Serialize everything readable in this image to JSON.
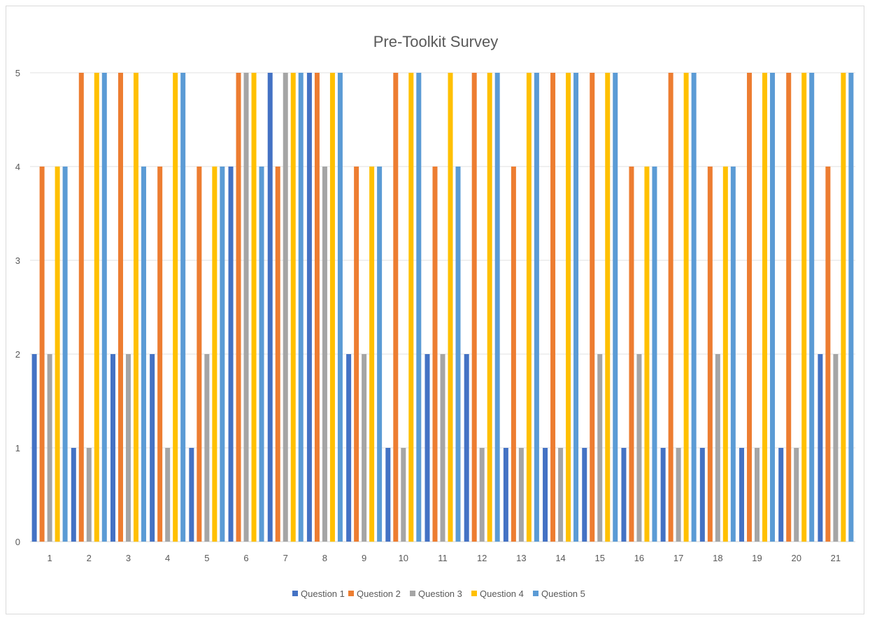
{
  "chart_data": {
    "type": "bar",
    "title": "Pre-Toolkit Survey",
    "xlabel": "",
    "ylabel": "",
    "ylim": [
      0,
      5
    ],
    "yticks": [
      "0",
      "1",
      "2",
      "3",
      "4",
      "5"
    ],
    "grid": true,
    "legend_position": "bottom",
    "categories": [
      "1",
      "2",
      "3",
      "4",
      "5",
      "6",
      "7",
      "8",
      "9",
      "10",
      "11",
      "12",
      "13",
      "14",
      "15",
      "16",
      "17",
      "18",
      "19",
      "20",
      "21"
    ],
    "series": [
      {
        "name": "Question 1",
        "color": "#4472c4",
        "values": [
          2,
          1,
          2,
          2,
          1,
          4,
          5,
          5,
          2,
          1,
          2,
          2,
          1,
          1,
          1,
          1,
          1,
          1,
          1,
          1,
          2
        ]
      },
      {
        "name": "Question  2",
        "color": "#ed7d31",
        "values": [
          4,
          5,
          5,
          4,
          4,
          5,
          4,
          5,
          4,
          5,
          4,
          5,
          4,
          5,
          5,
          4,
          5,
          4,
          5,
          5,
          4
        ]
      },
      {
        "name": "Question  3",
        "color": "#a5a5a5",
        "values": [
          2,
          1,
          2,
          1,
          2,
          5,
          5,
          4,
          2,
          1,
          2,
          1,
          1,
          1,
          2,
          2,
          1,
          2,
          1,
          1,
          2
        ]
      },
      {
        "name": "Question  4",
        "color": "#ffc000",
        "values": [
          4,
          5,
          5,
          5,
          4,
          5,
          5,
          5,
          4,
          5,
          5,
          5,
          5,
          5,
          5,
          4,
          5,
          4,
          5,
          5,
          5
        ]
      },
      {
        "name": "Question  5",
        "color": "#5b9bd5",
        "values": [
          4,
          5,
          4,
          5,
          4,
          4,
          5,
          5,
          4,
          5,
          4,
          5,
          5,
          5,
          5,
          4,
          5,
          4,
          5,
          5,
          5
        ]
      }
    ]
  }
}
